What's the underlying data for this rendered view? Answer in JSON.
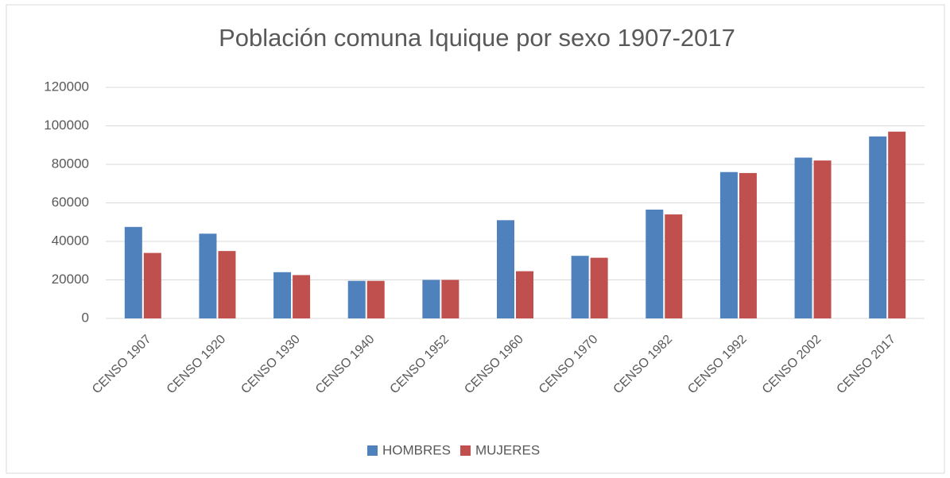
{
  "chart_data": {
    "type": "bar",
    "title": "Población comuna Iquique por sexo 1907-2017",
    "categories": [
      "CENSO 1907",
      "CENSO 1920",
      "CENSO 1930",
      "CENSO 1940",
      "CENSO 1952",
      "CENSO 1960",
      "CENSO 1970",
      "CENSO 1982",
      "CENSO 1992",
      "CENSO 2002",
      "CENSO 2017"
    ],
    "series": [
      {
        "name": "HOMBRES",
        "color": "#4f81bd",
        "values": [
          47500,
          44000,
          24000,
          19500,
          20000,
          51000,
          32500,
          56500,
          76000,
          83500,
          94500
        ]
      },
      {
        "name": "MUJERES",
        "color": "#c0504d",
        "values": [
          34000,
          35000,
          22500,
          19500,
          20000,
          24500,
          31500,
          54000,
          75500,
          82000,
          97000
        ]
      }
    ],
    "ylim": [
      0,
      120000
    ],
    "yticks": [
      0,
      20000,
      40000,
      60000,
      80000,
      100000,
      120000
    ],
    "grid": true,
    "legend": "bottom"
  }
}
